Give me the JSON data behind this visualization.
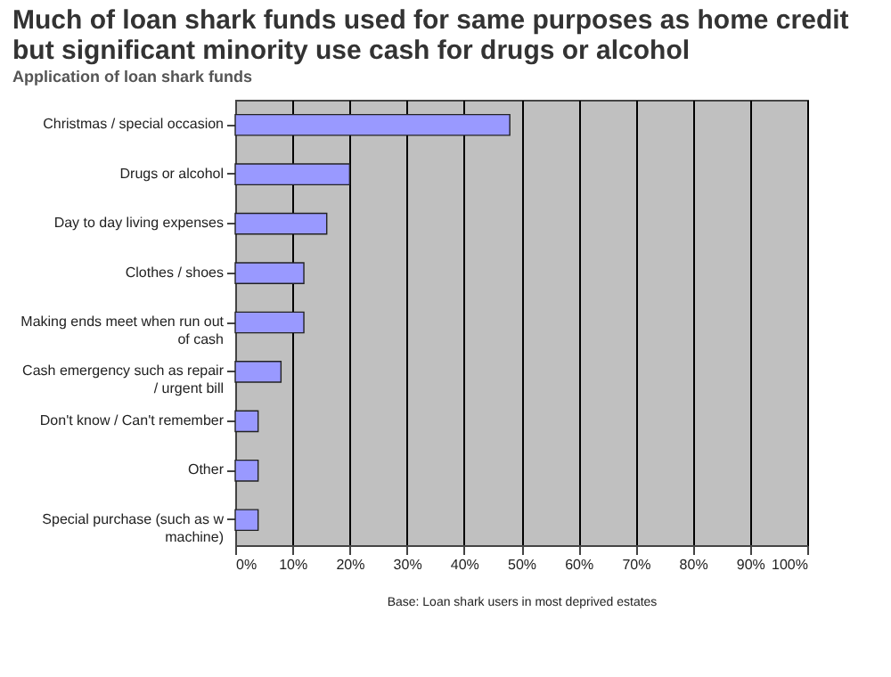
{
  "chart_data": {
    "type": "bar",
    "orientation": "horizontal",
    "title": "Much of loan shark funds used for same purposes as home credit but significant minority use cash for drugs or alcohol",
    "subtitle": "Application of loan shark funds",
    "categories": [
      "Christmas / special occasion",
      "Drugs or alcohol",
      "Day to day living expenses",
      "Clothes / shoes",
      "Making ends meet when run out of cash",
      "Cash emergency such as repair / urgent bill",
      "Don't know / Can't remember",
      "Other",
      "Special purchase (such as w machine)"
    ],
    "values": [
      48,
      20,
      16,
      12,
      12,
      8,
      4,
      4,
      4
    ],
    "color": "#9999ff",
    "xlim": [
      0,
      100
    ],
    "xticks": [
      {
        "value": 0,
        "label": "0%"
      },
      {
        "value": 10,
        "label": "10%"
      },
      {
        "value": 20,
        "label": "20%"
      },
      {
        "value": 30,
        "label": "30%"
      },
      {
        "value": 40,
        "label": "40%"
      },
      {
        "value": 50,
        "label": "50%"
      },
      {
        "value": 60,
        "label": "60%"
      },
      {
        "value": 70,
        "label": "70%"
      },
      {
        "value": 80,
        "label": "80%"
      },
      {
        "value": 90,
        "label": "90%"
      },
      {
        "value": 100,
        "label": "100%"
      }
    ],
    "grid": "x",
    "annotations": [
      "Base: Loan shark users in most deprived estates"
    ]
  }
}
